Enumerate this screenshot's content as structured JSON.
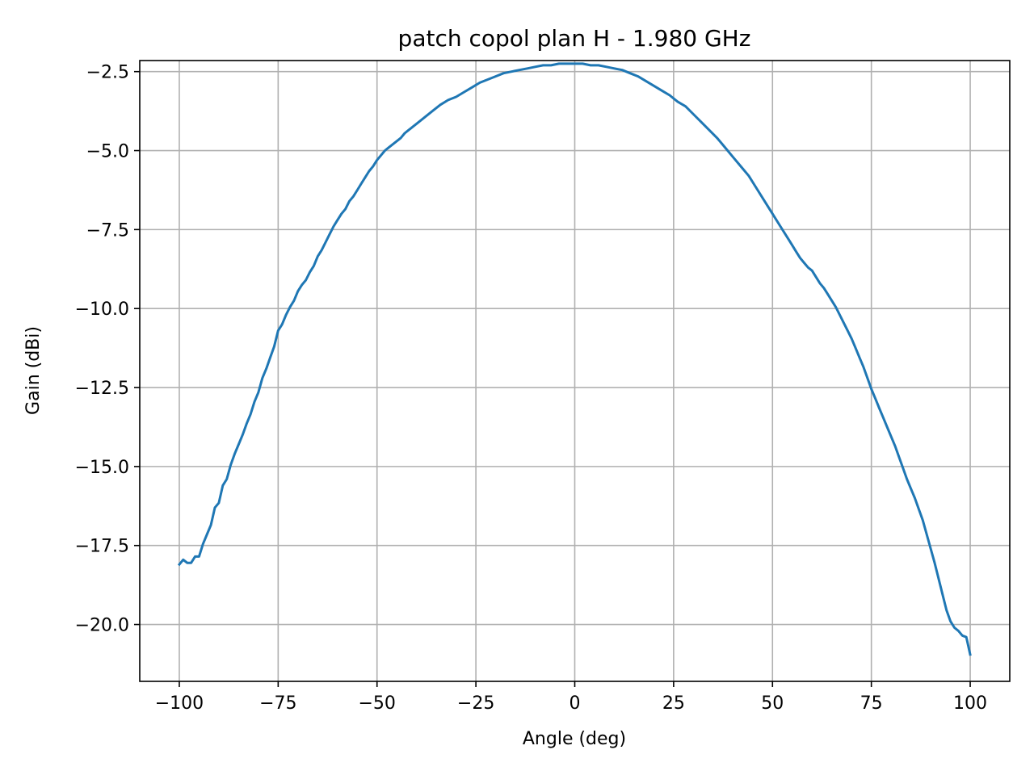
{
  "chart_data": {
    "type": "line",
    "title": "patch copol plan H - 1.980 GHz",
    "xlabel": "Angle (deg)",
    "ylabel": "Gain (dBi)",
    "xlim": [
      -110,
      110
    ],
    "ylim": [
      -21.8,
      -2.15
    ],
    "grid": true,
    "xticks": [
      -100,
      -75,
      -50,
      -25,
      0,
      25,
      50,
      75,
      100
    ],
    "xtick_labels": [
      "−100",
      "−75",
      "−50",
      "−25",
      "0",
      "25",
      "50",
      "75",
      "100"
    ],
    "yticks": [
      -2.5,
      -5.0,
      -7.5,
      -10.0,
      -12.5,
      -15.0,
      -17.5,
      -20.0
    ],
    "ytick_labels": [
      "−2.5",
      "−5.0",
      "−7.5",
      "−10.0",
      "−12.5",
      "−15.0",
      "−17.5",
      "−20.0"
    ],
    "series": [
      {
        "color": "#1f77b4",
        "x": [
          -100,
          -99,
          -98,
          -97,
          -96,
          -95,
          -94,
          -93,
          -92,
          -91,
          -90,
          -89,
          -88,
          -87,
          -86,
          -85,
          -84,
          -83,
          -82,
          -81,
          -80,
          -79,
          -78,
          -77,
          -76,
          -75,
          -74,
          -73,
          -72,
          -71,
          -70,
          -69,
          -68,
          -67,
          -66,
          -65,
          -64,
          -63,
          -62,
          -61,
          -60,
          -59,
          -58,
          -57,
          -56,
          -55,
          -54,
          -53,
          -52,
          -51,
          -50,
          -49,
          -48,
          -47,
          -46,
          -45,
          -44,
          -43,
          -42,
          -41,
          -40,
          -38,
          -36,
          -34,
          -32,
          -30,
          -28,
          -26,
          -24,
          -22,
          -20,
          -18,
          -16,
          -14,
          -12,
          -10,
          -8,
          -6,
          -4,
          -2,
          0,
          2,
          4,
          6,
          8,
          10,
          12,
          14,
          16,
          18,
          20,
          22,
          24,
          26,
          28,
          30,
          32,
          34,
          36,
          38,
          40,
          42,
          44,
          46,
          48,
          50,
          52,
          54,
          55,
          56,
          57,
          58,
          59,
          60,
          61,
          62,
          63,
          64,
          65,
          66,
          67,
          68,
          69,
          70,
          71,
          72,
          73,
          74,
          75,
          76,
          77,
          78,
          79,
          80,
          81,
          82,
          83,
          84,
          85,
          86,
          87,
          88,
          89,
          90,
          91,
          92,
          93,
          94,
          95,
          96,
          97,
          98,
          99,
          100
        ],
        "y": [
          -18.1,
          -17.95,
          -18.05,
          -18.05,
          -17.85,
          -17.85,
          -17.45,
          -17.15,
          -16.85,
          -16.3,
          -16.15,
          -15.6,
          -15.4,
          -14.95,
          -14.6,
          -14.3,
          -14.0,
          -13.65,
          -13.35,
          -12.95,
          -12.65,
          -12.2,
          -11.9,
          -11.55,
          -11.2,
          -10.7,
          -10.5,
          -10.2,
          -9.95,
          -9.75,
          -9.45,
          -9.25,
          -9.1,
          -8.85,
          -8.65,
          -8.35,
          -8.15,
          -7.9,
          -7.65,
          -7.4,
          -7.2,
          -7.0,
          -6.85,
          -6.6,
          -6.45,
          -6.25,
          -6.05,
          -5.85,
          -5.65,
          -5.5,
          -5.3,
          -5.15,
          -5.0,
          -4.9,
          -4.8,
          -4.7,
          -4.6,
          -4.45,
          -4.35,
          -4.25,
          -4.15,
          -3.95,
          -3.75,
          -3.55,
          -3.4,
          -3.3,
          -3.15,
          -3.0,
          -2.85,
          -2.75,
          -2.65,
          -2.55,
          -2.5,
          -2.45,
          -2.4,
          -2.35,
          -2.3,
          -2.3,
          -2.25,
          -2.25,
          -2.25,
          -2.25,
          -2.3,
          -2.3,
          -2.35,
          -2.4,
          -2.45,
          -2.55,
          -2.65,
          -2.8,
          -2.95,
          -3.1,
          -3.25,
          -3.45,
          -3.6,
          -3.85,
          -4.1,
          -4.35,
          -4.6,
          -4.9,
          -5.2,
          -5.5,
          -5.8,
          -6.2,
          -6.6,
          -7.0,
          -7.4,
          -7.8,
          -8.0,
          -8.2,
          -8.4,
          -8.55,
          -8.7,
          -8.8,
          -9.0,
          -9.2,
          -9.35,
          -9.55,
          -9.75,
          -9.95,
          -10.2,
          -10.45,
          -10.7,
          -10.95,
          -11.25,
          -11.55,
          -11.85,
          -12.2,
          -12.55,
          -12.85,
          -13.15,
          -13.45,
          -13.75,
          -14.05,
          -14.35,
          -14.7,
          -15.05,
          -15.4,
          -15.7,
          -16.0,
          -16.35,
          -16.7,
          -17.15,
          -17.6,
          -18.05,
          -18.55,
          -19.05,
          -19.55,
          -19.9,
          -20.1,
          -20.2,
          -20.35,
          -20.4,
          -20.95
        ]
      }
    ]
  }
}
